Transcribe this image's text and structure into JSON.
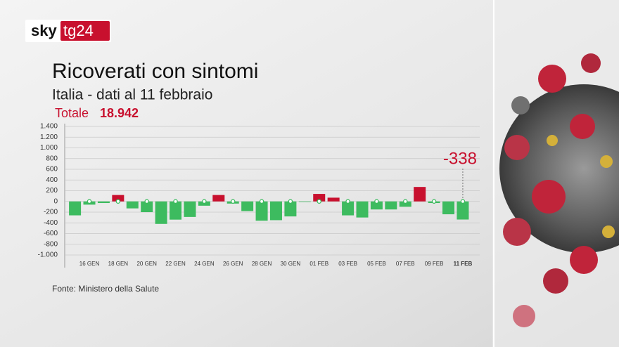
{
  "chart_data": {
    "type": "bar",
    "logo": {
      "brand": "sky",
      "channel": "tg24"
    },
    "title": "Ricoverati con sintomi",
    "subtitle": "Italia - dati al 11 febbraio",
    "total_label": "Totale",
    "total_value": "18.942",
    "source": "Fonte: Ministero della Salute",
    "categories": [
      null,
      "16 GEN",
      null,
      "18 GEN",
      null,
      "20 GEN",
      null,
      "22 GEN",
      null,
      "24 GEN",
      null,
      "26 GEN",
      null,
      "28 GEN",
      null,
      "30 GEN",
      null,
      "01 FEB",
      null,
      "03 FEB",
      null,
      "05 FEB",
      null,
      "07 FEB",
      null,
      "09 FEB",
      null,
      "11 FEB"
    ],
    "values": [
      -260,
      -60,
      -30,
      120,
      -130,
      -200,
      -420,
      -340,
      -290,
      -80,
      120,
      -40,
      -180,
      -360,
      -350,
      -280,
      -10,
      140,
      70,
      -260,
      -300,
      -150,
      -150,
      -100,
      270,
      -30,
      -240,
      -338
    ],
    "positive_color": "#c8102e",
    "negative_color": "#3dbb5f",
    "ylim": [
      -1000,
      1400
    ],
    "yticks": [
      {
        "value": 1400,
        "label": "1.400"
      },
      {
        "value": 1200,
        "label": "1.200"
      },
      {
        "value": 1000,
        "label": "1.000"
      },
      800,
      600,
      400,
      200,
      0,
      -200,
      -400,
      -600,
      -800,
      {
        "value": -1000,
        "label": "-1.000"
      }
    ],
    "grid": true
  }
}
